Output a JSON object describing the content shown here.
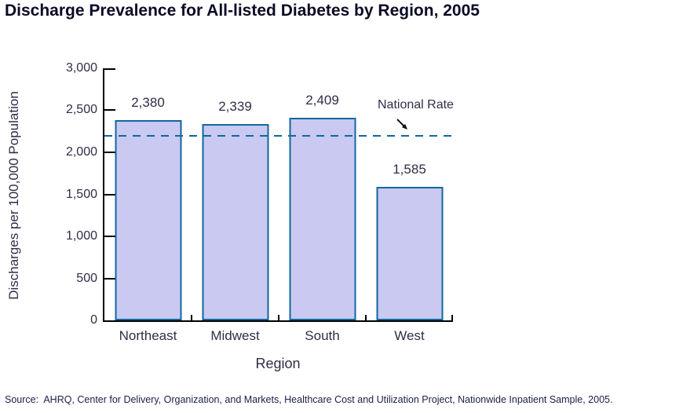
{
  "chart_data": {
    "type": "bar",
    "title": "Discharge Prevalence for All-listed Diabetes by Region, 2005",
    "xlabel": "Region",
    "ylabel": "Discharges per 100,000 Population",
    "categories": [
      "Northeast",
      "Midwest",
      "South",
      "West"
    ],
    "values": [
      2380,
      2339,
      2409,
      1585
    ],
    "value_labels": [
      "2,380",
      "2,339",
      "2,409",
      "1,585"
    ],
    "ylim": [
      0,
      3000
    ],
    "yticks": [
      0,
      500,
      1000,
      1500,
      2000,
      2500,
      3000
    ],
    "ytick_labels": [
      "0",
      "500",
      "1,000",
      "1,500",
      "2,000",
      "2,500",
      "3,000"
    ],
    "grid": false,
    "legend": false,
    "bar_color": "#c9c9f2",
    "bar_border_color": "#10689e",
    "reference_line": {
      "label": "National Rate",
      "value": 2200,
      "style": "dashed",
      "color": "#10689e"
    }
  },
  "footer": {
    "source": "Source:  AHRQ, Center for Delivery, Organization, and Markets, Healthcare Cost and Utilization Project, Nationwide Inpatient Sample, 2005."
  },
  "colors": {
    "background": "#ffffff",
    "axis": "#000000",
    "text": "#2e2e48",
    "title_text": "#0b0b26",
    "source_text": "#20204a"
  }
}
